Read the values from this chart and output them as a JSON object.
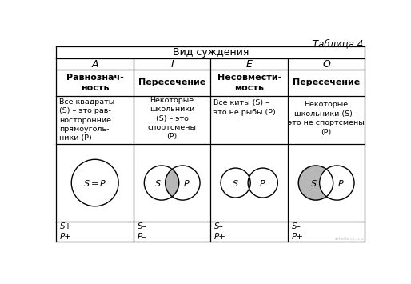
{
  "title": "Таблица 4",
  "header1": "Вид суждения",
  "col_headers": [
    "A",
    "I",
    "E",
    "O"
  ],
  "row1_bold": [
    "Равнознач-\nность",
    "Пересечение",
    "Несовмести-\nмость",
    "Пересечение"
  ],
  "row1_text": [
    "Все квадраты\n(S) – это рав-\nносторонние\nпрямоуголь-\nники (P)",
    "Некоторые\nшкольники\n(S) – это\nспортсмены\n(P)",
    "Все киты (S) –\nэто не рыбы (P)",
    "Некоторые\nшкольники (S) –\nэто не спортсмены\n(P)"
  ],
  "row3_text": [
    "S+\nP+",
    "S–\nP–",
    "S–\nP+",
    "S–\nP+"
  ],
  "bg_color": "#ffffff",
  "gray_color": "#b0b0b0"
}
